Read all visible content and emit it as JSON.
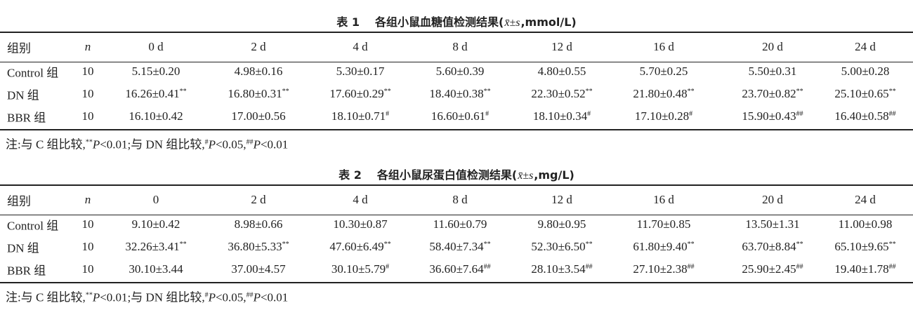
{
  "tables": [
    {
      "title": {
        "number": "表 1",
        "name": "各组小鼠血糖值检测结果(",
        "stat": "x̄±s",
        "unit": ",mmol/L)"
      },
      "headers": [
        "组别",
        "n",
        "0 d",
        "2 d",
        "4 d",
        "8 d",
        "12 d",
        "16 d",
        "20 d",
        "24 d"
      ],
      "rows": [
        [
          "Control 组",
          "10",
          "5.15±0.20",
          "4.98±0.16",
          "5.30±0.17",
          "5.60±0.39",
          "4.80±0.55",
          "5.70±0.25",
          "5.50±0.31",
          "5.00±0.28"
        ],
        [
          "DN 组",
          "10",
          {
            "v": "16.26±0.41",
            "sup": "**"
          },
          {
            "v": "16.80±0.31",
            "sup": "**"
          },
          {
            "v": "17.60±0.29",
            "sup": "**"
          },
          {
            "v": "18.40±0.38",
            "sup": "**"
          },
          {
            "v": "22.30±0.52",
            "sup": "**"
          },
          {
            "v": "21.80±0.48",
            "sup": "**"
          },
          {
            "v": "23.70±0.82",
            "sup": "**"
          },
          {
            "v": "25.10±0.65",
            "sup": "**"
          }
        ],
        [
          "BBR 组",
          "10",
          "16.10±0.42",
          "17.00±0.56",
          {
            "v": "18.10±0.71",
            "sup": "#"
          },
          {
            "v": "16.60±0.61",
            "sup": "#"
          },
          {
            "v": "18.10±0.34",
            "sup": "#"
          },
          {
            "v": "17.10±0.28",
            "sup": "#"
          },
          {
            "v": "15.90±0.43",
            "sup": "##"
          },
          {
            "v": "16.40±0.58",
            "sup": "##"
          }
        ]
      ],
      "note": [
        {
          "t": "注:与 C 组比较,"
        },
        {
          "t": "**",
          "s": "sup"
        },
        {
          "t": "P",
          "s": "i"
        },
        {
          "t": "<0.01;与 DN 组比较,"
        },
        {
          "t": "#",
          "s": "sup"
        },
        {
          "t": "P",
          "s": "i"
        },
        {
          "t": "<0.05,"
        },
        {
          "t": "##",
          "s": "sup"
        },
        {
          "t": "P",
          "s": "i"
        },
        {
          "t": "<0.01"
        }
      ]
    },
    {
      "title": {
        "number": "表 2",
        "name": "各组小鼠尿蛋白值检测结果(",
        "stat": "x̄±s",
        "unit": ",mg/L)"
      },
      "headers": [
        "组别",
        "n",
        "0",
        "2 d",
        "4 d",
        "8 d",
        "12 d",
        "16 d",
        "20 d",
        "24 d"
      ],
      "rows": [
        [
          "Control 组",
          "10",
          "9.10±0.42",
          "8.98±0.66",
          "10.30±0.87",
          "11.60±0.79",
          "9.80±0.95",
          "11.70±0.85",
          "13.50±1.31",
          "11.00±0.98"
        ],
        [
          "DN 组",
          "10",
          {
            "v": "32.26±3.41",
            "sup": "**"
          },
          {
            "v": "36.80±5.33",
            "sup": "**"
          },
          {
            "v": "47.60±6.49",
            "sup": "**"
          },
          {
            "v": "58.40±7.34",
            "sup": "**"
          },
          {
            "v": "52.30±6.50",
            "sup": "**"
          },
          {
            "v": "61.80±9.40",
            "sup": "**"
          },
          {
            "v": "63.70±8.84",
            "sup": "**"
          },
          {
            "v": "65.10±9.65",
            "sup": "**"
          }
        ],
        [
          "BBR 组",
          "10",
          "30.10±3.44",
          "37.00±4.57",
          {
            "v": "30.10±5.79",
            "sup": "#"
          },
          {
            "v": "36.60±7.64",
            "sup": "##"
          },
          {
            "v": "28.10±3.54",
            "sup": "##"
          },
          {
            "v": "27.10±2.38",
            "sup": "##"
          },
          {
            "v": "25.90±2.45",
            "sup": "##"
          },
          {
            "v": "19.40±1.78",
            "sup": "##"
          }
        ]
      ],
      "note": [
        {
          "t": "注:与 C 组比较,"
        },
        {
          "t": "**",
          "s": "sup"
        },
        {
          "t": "P",
          "s": "i"
        },
        {
          "t": "<0.01;与 DN 组比较,"
        },
        {
          "t": "#",
          "s": "sup"
        },
        {
          "t": "P",
          "s": "i"
        },
        {
          "t": "<0.05,"
        },
        {
          "t": "##",
          "s": "sup"
        },
        {
          "t": "P",
          "s": "i"
        },
        {
          "t": "<0.01"
        }
      ]
    }
  ]
}
